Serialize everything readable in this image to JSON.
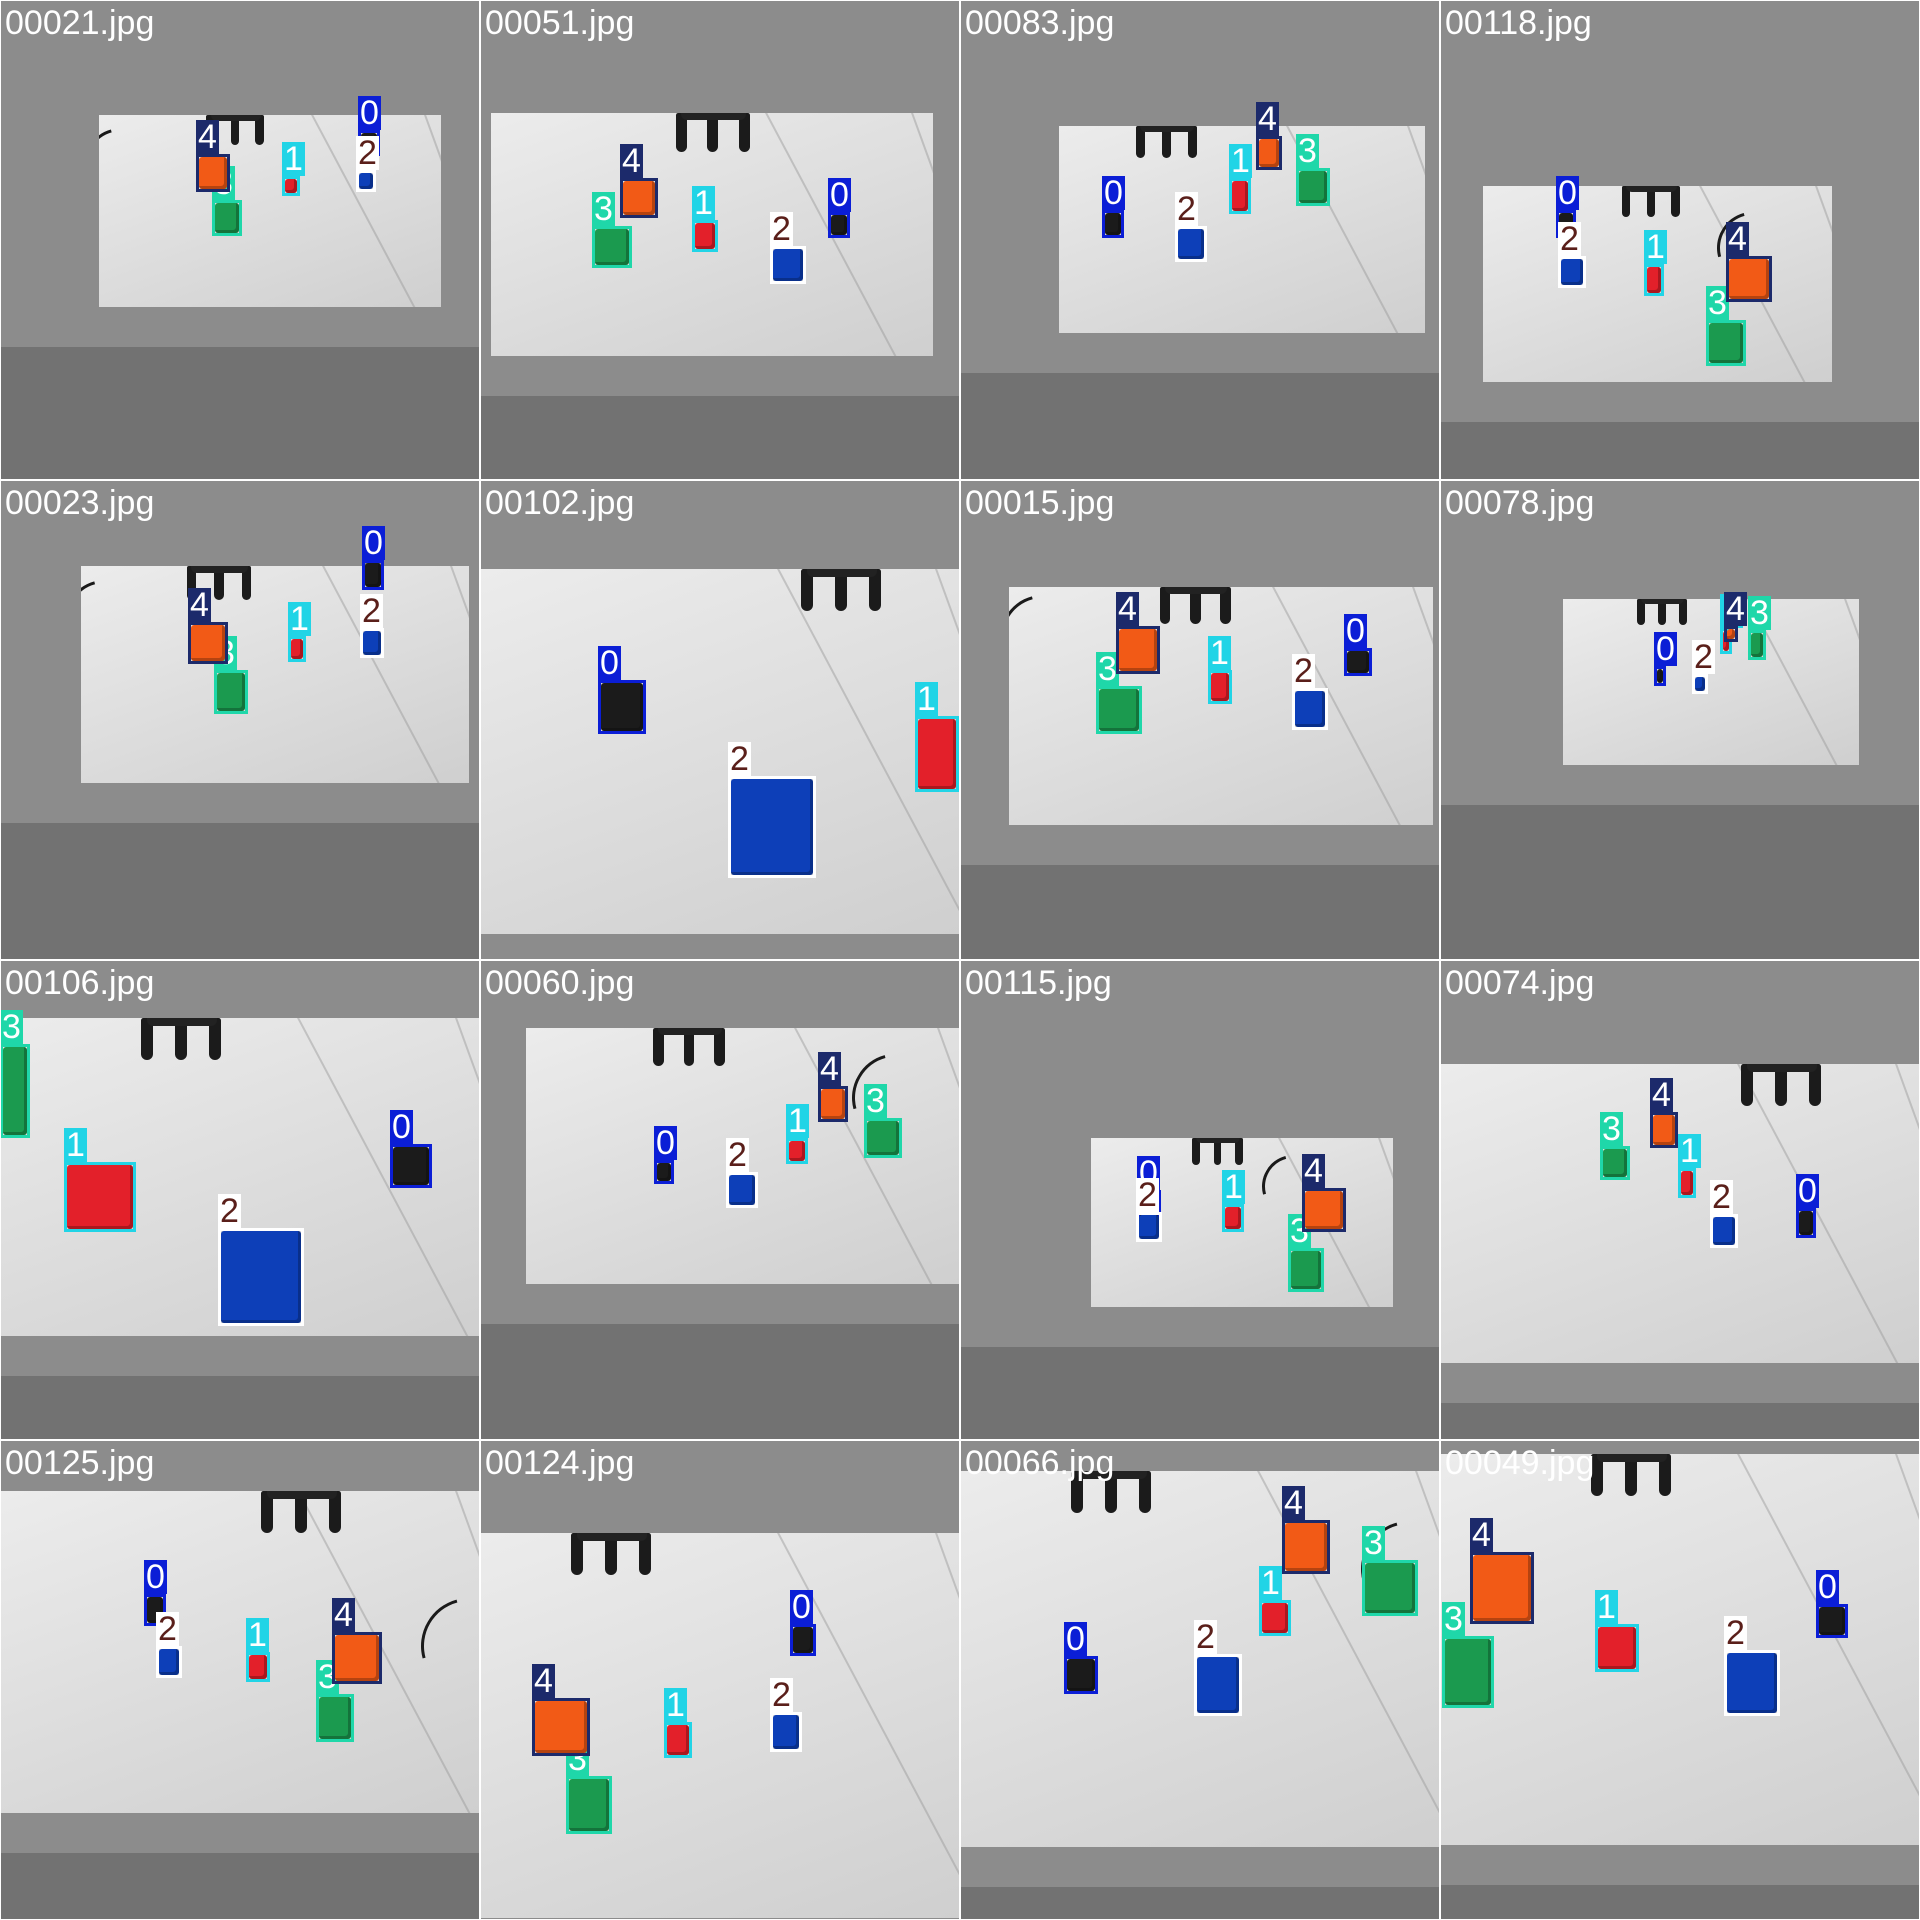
{
  "class_colors": {
    "0": "#0b1ed6",
    "1": "#21d4e6",
    "2": "#ffffff",
    "3": "#1fd7a9",
    "4": "#1c2a6b"
  },
  "label_text_colors": {
    "0": "#ffffff",
    "1": "#ffffff",
    "2": "#5a1f1a",
    "3": "#ffffff",
    "4": "#ffffff"
  },
  "cube_colors": {
    "0": "#1b1b1b",
    "1": "#e3202a",
    "2": "#0d3fb8",
    "3": "#1b9a4f",
    "4": "#f25a16"
  },
  "tiles": [
    {
      "filename": "00021.jpg",
      "detections": [
        {
          "cls": "0",
          "label": "0"
        },
        {
          "cls": "1",
          "label": "1"
        },
        {
          "cls": "2",
          "label": "2"
        },
        {
          "cls": "3",
          "label": "3"
        },
        {
          "cls": "4",
          "label": "4"
        }
      ]
    },
    {
      "filename": "00051.jpg",
      "detections": [
        {
          "cls": "0",
          "label": "0"
        },
        {
          "cls": "1",
          "label": "1"
        },
        {
          "cls": "2",
          "label": "2"
        },
        {
          "cls": "3",
          "label": "3"
        },
        {
          "cls": "4",
          "label": "4"
        }
      ]
    },
    {
      "filename": "00083.jpg",
      "detections": [
        {
          "cls": "0",
          "label": "0"
        },
        {
          "cls": "1",
          "label": "1"
        },
        {
          "cls": "2",
          "label": "2"
        },
        {
          "cls": "3",
          "label": "3"
        },
        {
          "cls": "4",
          "label": "4"
        }
      ]
    },
    {
      "filename": "00118.jpg",
      "detections": [
        {
          "cls": "0",
          "label": "0"
        },
        {
          "cls": "1",
          "label": "1"
        },
        {
          "cls": "2",
          "label": "2"
        },
        {
          "cls": "3",
          "label": "3"
        },
        {
          "cls": "4",
          "label": "4"
        }
      ]
    },
    {
      "filename": "00023.jpg",
      "detections": [
        {
          "cls": "0",
          "label": "0"
        },
        {
          "cls": "1",
          "label": "1"
        },
        {
          "cls": "2",
          "label": "2"
        },
        {
          "cls": "3",
          "label": "3"
        },
        {
          "cls": "4",
          "label": "4"
        }
      ]
    },
    {
      "filename": "00102.jpg",
      "detections": [
        {
          "cls": "0",
          "label": "0"
        },
        {
          "cls": "1",
          "label": "1"
        },
        {
          "cls": "2",
          "label": "2"
        }
      ]
    },
    {
      "filename": "00015.jpg",
      "detections": [
        {
          "cls": "0",
          "label": "0"
        },
        {
          "cls": "1",
          "label": "1"
        },
        {
          "cls": "2",
          "label": "2"
        },
        {
          "cls": "3",
          "label": "3"
        },
        {
          "cls": "4",
          "label": "4"
        }
      ]
    },
    {
      "filename": "00078.jpg",
      "detections": [
        {
          "cls": "0",
          "label": "0"
        },
        {
          "cls": "1",
          "label": "1"
        },
        {
          "cls": "2",
          "label": "2"
        },
        {
          "cls": "3",
          "label": "3"
        },
        {
          "cls": "4",
          "label": "4"
        }
      ]
    },
    {
      "filename": "00106.jpg",
      "detections": [
        {
          "cls": "0",
          "label": "0"
        },
        {
          "cls": "1",
          "label": "1"
        },
        {
          "cls": "2",
          "label": "2"
        },
        {
          "cls": "3",
          "label": "3"
        }
      ]
    },
    {
      "filename": "00060.jpg",
      "detections": [
        {
          "cls": "0",
          "label": "0"
        },
        {
          "cls": "1",
          "label": "1"
        },
        {
          "cls": "2",
          "label": "2"
        },
        {
          "cls": "3",
          "label": "3"
        },
        {
          "cls": "4",
          "label": "4"
        }
      ]
    },
    {
      "filename": "00115.jpg",
      "detections": [
        {
          "cls": "0",
          "label": "0"
        },
        {
          "cls": "1",
          "label": "1"
        },
        {
          "cls": "2",
          "label": "2"
        },
        {
          "cls": "3",
          "label": "3"
        },
        {
          "cls": "4",
          "label": "4"
        }
      ]
    },
    {
      "filename": "00074.jpg",
      "detections": [
        {
          "cls": "0",
          "label": "0"
        },
        {
          "cls": "1",
          "label": "1"
        },
        {
          "cls": "2",
          "label": "2"
        },
        {
          "cls": "3",
          "label": "3"
        },
        {
          "cls": "4",
          "label": "4"
        }
      ]
    },
    {
      "filename": "00125.jpg",
      "detections": [
        {
          "cls": "0",
          "label": "0"
        },
        {
          "cls": "1",
          "label": "1"
        },
        {
          "cls": "2",
          "label": "2"
        },
        {
          "cls": "3",
          "label": "3"
        },
        {
          "cls": "4",
          "label": "4"
        }
      ]
    },
    {
      "filename": "00124.jpg",
      "detections": [
        {
          "cls": "0",
          "label": "0"
        },
        {
          "cls": "1",
          "label": "1"
        },
        {
          "cls": "2",
          "label": "2"
        },
        {
          "cls": "3",
          "label": "3"
        },
        {
          "cls": "4",
          "label": "4"
        }
      ]
    },
    {
      "filename": "00066.jpg",
      "detections": [
        {
          "cls": "0",
          "label": "0"
        },
        {
          "cls": "1",
          "label": "1"
        },
        {
          "cls": "2",
          "label": "2"
        },
        {
          "cls": "3",
          "label": "3"
        },
        {
          "cls": "4",
          "label": "4"
        }
      ]
    },
    {
      "filename": "00049.jpg",
      "detections": [
        {
          "cls": "0",
          "label": "0"
        },
        {
          "cls": "1",
          "label": "1"
        },
        {
          "cls": "2",
          "label": "2"
        },
        {
          "cls": "3",
          "label": "3"
        },
        {
          "cls": "4",
          "label": "4"
        }
      ]
    }
  ]
}
